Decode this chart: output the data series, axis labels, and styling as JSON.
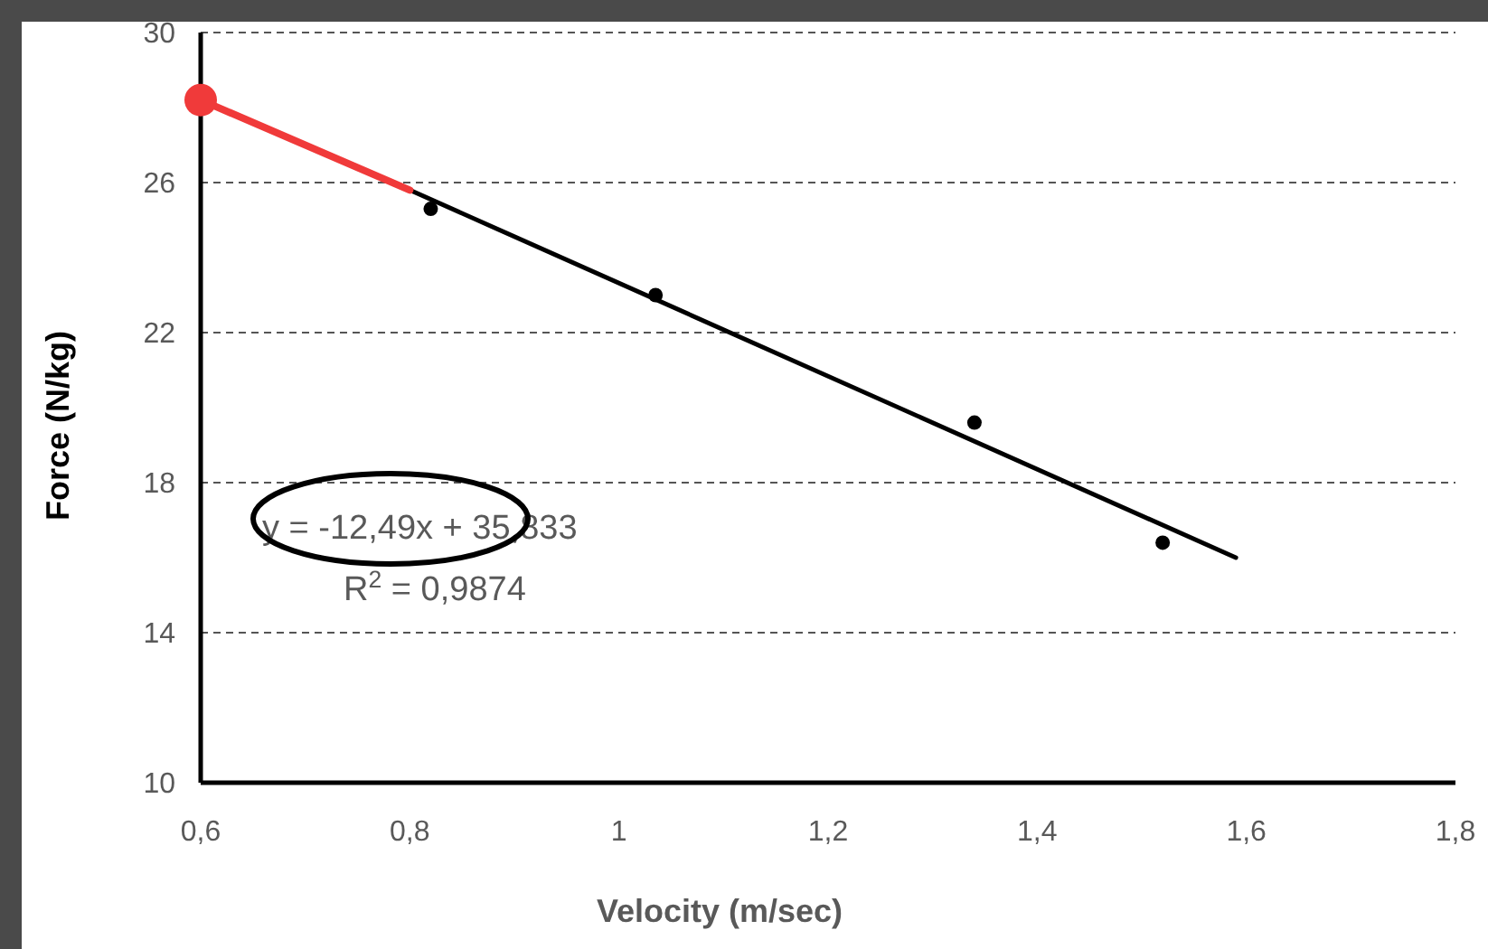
{
  "chart_data": {
    "type": "scatter",
    "xlabel": "Velocity (m/sec)",
    "ylabel": "Force (N/kg)",
    "xlim": [
      0.6,
      1.8
    ],
    "ylim": [
      10,
      30
    ],
    "xticks": [
      {
        "value": 0.6,
        "label": "0,6"
      },
      {
        "value": 0.8,
        "label": "0,8"
      },
      {
        "value": 1,
        "label": "1"
      },
      {
        "value": 1.2,
        "label": "1,2"
      },
      {
        "value": 1.4,
        "label": "1,4"
      },
      {
        "value": 1.6,
        "label": "1,6"
      },
      {
        "value": 1.8,
        "label": "1,8"
      }
    ],
    "yticks": [
      10,
      14,
      18,
      22,
      26,
      30
    ],
    "grid": "y",
    "series": [
      {
        "type": "line",
        "color": "#000000",
        "x": [
          0.8,
          1.59
        ],
        "values": [
          25.8,
          16.0
        ],
        "marker": "none",
        "line_style": "solid"
      },
      {
        "type": "line",
        "color": "#f03a3a",
        "x": [
          0.6,
          0.8
        ],
        "values": [
          28.2,
          25.8
        ],
        "marker": "none",
        "line_style": "solid"
      },
      {
        "color": "#000000",
        "x": [
          0.82,
          1.035,
          1.34,
          1.52
        ],
        "values": [
          25.3,
          23.0,
          19.6,
          16.4
        ],
        "marker": "circle"
      },
      {
        "color": "#f03a3a",
        "x": [
          0.6
        ],
        "values": [
          28.2
        ],
        "marker": "circle"
      }
    ],
    "annotations": [
      "y = -12,49x + 35,833",
      "R$^{2}$ = 0,9874"
    ]
  }
}
